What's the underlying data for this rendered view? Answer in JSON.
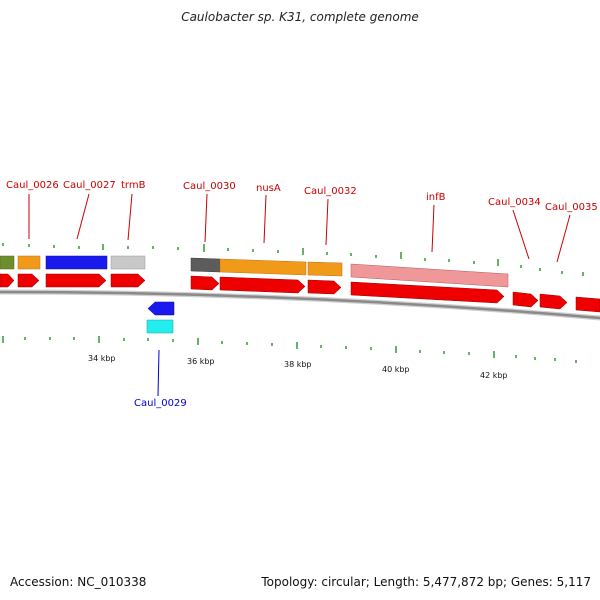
{
  "title": "Caulobacter sp. K31, complete genome",
  "footer": {
    "accession": "Accession: NC_010338",
    "stats": "Topology: circular; Length: 5,477,872 bp; Genes: 5,117"
  },
  "colors": {
    "label_forward": "#cc0000",
    "label_reverse": "#0000cc",
    "cds": "#ee0000",
    "backbone": "#8a8a8a",
    "tick": "#338833"
  },
  "gene_labels": [
    {
      "text": "Caul_0026",
      "strand": "forward"
    },
    {
      "text": "Caul_0027",
      "strand": "forward"
    },
    {
      "text": "trmB",
      "strand": "forward"
    },
    {
      "text": "Caul_0030",
      "strand": "forward"
    },
    {
      "text": "nusA",
      "strand": "forward"
    },
    {
      "text": "Caul_0032",
      "strand": "forward"
    },
    {
      "text": "infB",
      "strand": "forward"
    },
    {
      "text": "Caul_0034",
      "strand": "forward"
    },
    {
      "text": "Caul_0035",
      "strand": "forward"
    },
    {
      "text": "Caul_0029",
      "strand": "reverse"
    }
  ],
  "scale_labels": [
    "34 kbp",
    "36 kbp",
    "38 kbp",
    "40 kbp",
    "42 kbp"
  ]
}
